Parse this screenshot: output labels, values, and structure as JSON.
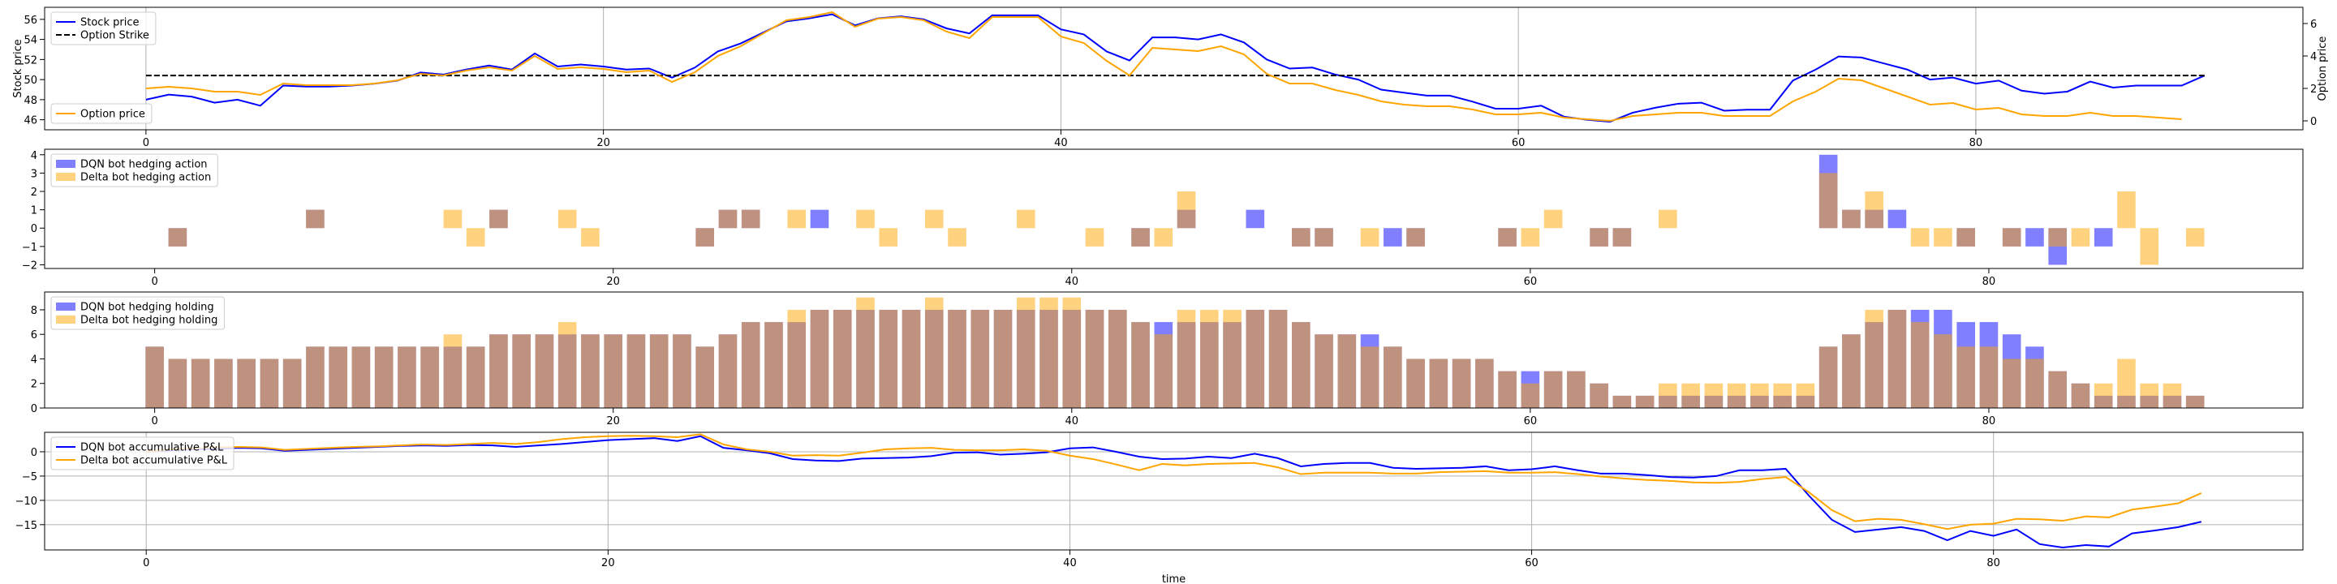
{
  "chart_data": [
    {
      "type": "line",
      "ylabel": "Stock price",
      "y2label": "Option price",
      "xlim": [
        -4.43,
        94.3
      ],
      "xticks": [
        0,
        20,
        40,
        60,
        80
      ],
      "ylim": [
        45,
        57.2
      ],
      "yticks": [
        46,
        48,
        50,
        52,
        54,
        56
      ],
      "y2lim": [
        -0.55,
        7.0
      ],
      "y2ticks": [
        0,
        2,
        4,
        6
      ],
      "grid": "x",
      "x": [
        0,
        1,
        2,
        3,
        4,
        5,
        6,
        7,
        8,
        9,
        10,
        11,
        12,
        13,
        14,
        15,
        16,
        17,
        18,
        19,
        20,
        21,
        22,
        23,
        24,
        25,
        26,
        27,
        28,
        29,
        30,
        31,
        32,
        33,
        34,
        35,
        36,
        37,
        38,
        39,
        40,
        41,
        42,
        43,
        44,
        45,
        46,
        47,
        48,
        49,
        50,
        51,
        52,
        53,
        54,
        55,
        56,
        57,
        58,
        59,
        60,
        61,
        62,
        63,
        64,
        65,
        66,
        67,
        68,
        69,
        70,
        71,
        72,
        73,
        74,
        75,
        76,
        77,
        78,
        79,
        80,
        81,
        82,
        83,
        84,
        85,
        86,
        87,
        88,
        89,
        90
      ],
      "series": [
        {
          "name": "Stock price",
          "color": "#0000ff",
          "legend": "upper left",
          "values": [
            48.0,
            48.5,
            48.3,
            47.7,
            48.0,
            47.4,
            49.4,
            49.3,
            49.3,
            49.4,
            49.6,
            49.9,
            50.7,
            50.5,
            51.0,
            51.4,
            51.0,
            52.6,
            51.3,
            51.5,
            51.3,
            51.0,
            51.1,
            50.2,
            51.2,
            52.8,
            53.6,
            54.7,
            55.8,
            56.1,
            56.5,
            55.4,
            56.1,
            56.3,
            56.0,
            55.1,
            54.6,
            56.4,
            56.4,
            56.4,
            55.0,
            54.5,
            52.8,
            51.9,
            54.2,
            54.2,
            54.0,
            54.5,
            53.7,
            52.0,
            51.1,
            51.2,
            50.5,
            50.0,
            49.0,
            48.7,
            48.4,
            48.4,
            47.8,
            47.1,
            47.1,
            47.4,
            46.3,
            46.0,
            45.8,
            46.7,
            47.2,
            47.6,
            47.7,
            46.9,
            47.0,
            47.0,
            49.9,
            51.0,
            52.3,
            52.2,
            51.6,
            51.0,
            50.0,
            50.2,
            49.6,
            49.9,
            48.9,
            48.6,
            48.8,
            49.8,
            49.2,
            49.4,
            49.4,
            49.4,
            50.4
          ]
        },
        {
          "name": "Option Strike",
          "color": "#000000",
          "dash": true,
          "legend": "upper left",
          "x": [
            0,
            90
          ],
          "values": [
            50.4,
            50.4
          ]
        },
        {
          "name": "Option price",
          "color": "#ffa500",
          "axis": "y2",
          "legend": "lower left",
          "values": [
            2.0,
            2.1,
            2.0,
            1.8,
            1.8,
            1.6,
            2.3,
            2.2,
            2.2,
            2.2,
            2.3,
            2.5,
            2.9,
            2.8,
            3.1,
            3.3,
            3.1,
            4.0,
            3.2,
            3.3,
            3.2,
            3.0,
            3.1,
            2.4,
            3.0,
            4.0,
            4.6,
            5.4,
            6.2,
            6.4,
            6.7,
            5.8,
            6.3,
            6.4,
            6.2,
            5.5,
            5.1,
            6.4,
            6.4,
            6.4,
            5.2,
            4.8,
            3.7,
            2.8,
            4.5,
            4.4,
            4.3,
            4.6,
            4.1,
            2.9,
            2.3,
            2.3,
            1.9,
            1.6,
            1.2,
            1.0,
            0.9,
            0.9,
            0.7,
            0.4,
            0.4,
            0.5,
            0.2,
            0.1,
            0.0,
            0.3,
            0.4,
            0.5,
            0.5,
            0.3,
            0.3,
            0.3,
            1.2,
            1.8,
            2.6,
            2.5,
            2.0,
            1.5,
            1.0,
            1.1,
            0.7,
            0.8,
            0.4,
            0.3,
            0.3,
            0.5,
            0.3,
            0.3,
            0.2,
            0.1,
            null
          ]
        }
      ]
    },
    {
      "type": "bar",
      "xlim": [
        -4.8,
        93.7
      ],
      "xticks": [
        0,
        20,
        40,
        60,
        80
      ],
      "ylim": [
        -2.2,
        4.3
      ],
      "yticks": [
        {
          "value": -2,
          "label": "−2"
        },
        {
          "value": -1,
          "label": "−1"
        },
        0,
        1,
        2,
        3,
        4
      ],
      "grid": "none",
      "x": [
        0,
        1,
        2,
        3,
        4,
        5,
        6,
        7,
        8,
        9,
        10,
        11,
        12,
        13,
        14,
        15,
        16,
        17,
        18,
        19,
        20,
        21,
        22,
        23,
        24,
        25,
        26,
        27,
        28,
        29,
        30,
        31,
        32,
        33,
        34,
        35,
        36,
        37,
        38,
        39,
        40,
        41,
        42,
        43,
        44,
        45,
        46,
        47,
        48,
        49,
        50,
        51,
        52,
        53,
        54,
        55,
        56,
        57,
        58,
        59,
        60,
        61,
        62,
        63,
        64,
        65,
        66,
        67,
        68,
        69,
        70,
        71,
        72,
        73,
        74,
        75,
        76,
        77,
        78,
        79,
        80,
        81,
        82,
        83,
        84,
        85,
        86,
        87,
        88,
        89
      ],
      "series": [
        {
          "name": "DQN bot hedging action",
          "color": "#0000ff",
          "legend": "upper left",
          "values": [
            0,
            -1,
            0,
            0,
            0,
            0,
            0,
            1,
            0,
            0,
            0,
            0,
            0,
            0,
            0,
            1,
            0,
            0,
            0,
            0,
            0,
            0,
            0,
            0,
            -1,
            1,
            1,
            0,
            0,
            1,
            0,
            0,
            0,
            0,
            0,
            0,
            0,
            0,
            0,
            0,
            0,
            0,
            0,
            -1,
            0,
            1,
            0,
            0,
            1,
            0,
            -1,
            -1,
            0,
            0,
            -1,
            -1,
            0,
            0,
            0,
            -1,
            0,
            0,
            0,
            -1,
            -1,
            0,
            0,
            0,
            0,
            0,
            0,
            0,
            0,
            4,
            1,
            1,
            1,
            0,
            0,
            -1,
            0,
            -1,
            -1,
            -2,
            0,
            -1,
            0,
            0,
            0,
            0
          ]
        },
        {
          "name": "Delta bot hedging action",
          "color": "#ffa500",
          "legend": "upper left",
          "values": [
            0,
            -1,
            0,
            0,
            0,
            0,
            0,
            1,
            0,
            0,
            0,
            0,
            0,
            1,
            -1,
            1,
            0,
            0,
            1,
            -1,
            0,
            0,
            0,
            0,
            -1,
            1,
            1,
            0,
            1,
            0,
            0,
            1,
            -1,
            0,
            1,
            -1,
            0,
            0,
            1,
            0,
            0,
            -1,
            0,
            -1,
            -1,
            2,
            0,
            0,
            0,
            0,
            -1,
            -1,
            0,
            -1,
            0,
            -1,
            0,
            0,
            0,
            -1,
            -1,
            1,
            0,
            -1,
            -1,
            0,
            1,
            0,
            0,
            0,
            0,
            0,
            0,
            3,
            1,
            2,
            0,
            -1,
            -1,
            -1,
            0,
            -1,
            0,
            -1,
            -1,
            0,
            2,
            -2,
            0,
            -1
          ]
        }
      ]
    },
    {
      "type": "bar",
      "xlim": [
        -4.8,
        93.7
      ],
      "xticks": [
        0,
        20,
        40,
        60,
        80
      ],
      "ylim": [
        0,
        9.45
      ],
      "yticks": [
        0,
        2,
        4,
        6,
        8
      ],
      "grid": "none",
      "x": [
        0,
        1,
        2,
        3,
        4,
        5,
        6,
        7,
        8,
        9,
        10,
        11,
        12,
        13,
        14,
        15,
        16,
        17,
        18,
        19,
        20,
        21,
        22,
        23,
        24,
        25,
        26,
        27,
        28,
        29,
        30,
        31,
        32,
        33,
        34,
        35,
        36,
        37,
        38,
        39,
        40,
        41,
        42,
        43,
        44,
        45,
        46,
        47,
        48,
        49,
        50,
        51,
        52,
        53,
        54,
        55,
        56,
        57,
        58,
        59,
        60,
        61,
        62,
        63,
        64,
        65,
        66,
        67,
        68,
        69,
        70,
        71,
        72,
        73,
        74,
        75,
        76,
        77,
        78,
        79,
        80,
        81,
        82,
        83,
        84,
        85,
        86,
        87,
        88,
        89
      ],
      "series": [
        {
          "name": "DQN bot hedging holding",
          "color": "#0000ff",
          "legend": "upper left",
          "values": [
            5,
            4,
            4,
            4,
            4,
            4,
            4,
            5,
            5,
            5,
            5,
            5,
            5,
            5,
            5,
            6,
            6,
            6,
            6,
            6,
            6,
            6,
            6,
            6,
            5,
            6,
            7,
            7,
            7,
            8,
            8,
            8,
            8,
            8,
            8,
            8,
            8,
            8,
            8,
            8,
            8,
            8,
            8,
            7,
            7,
            7,
            7,
            7,
            8,
            8,
            7,
            6,
            6,
            6,
            5,
            4,
            4,
            4,
            4,
            3,
            3,
            3,
            3,
            2,
            1,
            1,
            1,
            1,
            1,
            1,
            1,
            1,
            1,
            5,
            6,
            7,
            8,
            8,
            8,
            7,
            7,
            6,
            5,
            3,
            2,
            1,
            1,
            1,
            1,
            1
          ]
        },
        {
          "name": "Delta bot hedging holding",
          "color": "#ffa500",
          "legend": "upper left",
          "values": [
            5,
            4,
            4,
            4,
            4,
            4,
            4,
            5,
            5,
            5,
            5,
            5,
            5,
            6,
            5,
            6,
            6,
            6,
            7,
            6,
            6,
            6,
            6,
            6,
            5,
            6,
            7,
            7,
            8,
            8,
            8,
            9,
            8,
            8,
            9,
            8,
            8,
            8,
            9,
            9,
            9,
            8,
            8,
            7,
            6,
            8,
            8,
            8,
            8,
            8,
            7,
            6,
            6,
            5,
            5,
            4,
            4,
            4,
            4,
            3,
            2,
            3,
            3,
            2,
            1,
            1,
            2,
            2,
            2,
            2,
            2,
            2,
            2,
            5,
            6,
            8,
            8,
            7,
            6,
            5,
            5,
            4,
            4,
            3,
            2,
            2,
            4,
            2,
            2,
            1
          ]
        }
      ]
    },
    {
      "type": "line",
      "xlabel": "time",
      "xlim": [
        -4.4,
        93.4
      ],
      "xticks": [
        0,
        20,
        40,
        60,
        80
      ],
      "ylim": [
        -20.2,
        4.0
      ],
      "yticks": [
        {
          "value": -15,
          "label": "−15"
        },
        {
          "value": -10,
          "label": "−10"
        },
        {
          "value": -5,
          "label": "−5"
        },
        0
      ],
      "grid": "both",
      "x": [
        0,
        1,
        2,
        3,
        4,
        5,
        6,
        7,
        8,
        9,
        10,
        11,
        12,
        13,
        14,
        15,
        16,
        17,
        18,
        19,
        20,
        21,
        22,
        23,
        24,
        25,
        26,
        27,
        28,
        29,
        30,
        31,
        32,
        33,
        34,
        35,
        36,
        37,
        38,
        39,
        40,
        41,
        42,
        43,
        44,
        45,
        46,
        47,
        48,
        49,
        50,
        51,
        52,
        53,
        54,
        55,
        56,
        57,
        58,
        59,
        60,
        61,
        62,
        63,
        64,
        65,
        66,
        67,
        68,
        69,
        70,
        71,
        72,
        73,
        74,
        75,
        76,
        77,
        78,
        79,
        80,
        81,
        82,
        83,
        84,
        85,
        86,
        87,
        88,
        89
      ],
      "series": [
        {
          "name": "DQN bot accumulative P&L",
          "color": "#0000ff",
          "legend": "upper left",
          "values": [
            0,
            0.3,
            0.5,
            0.6,
            0.8,
            0.7,
            0.2,
            0.4,
            0.6,
            0.8,
            1.0,
            1.2,
            1.3,
            1.2,
            1.4,
            1.3,
            1.0,
            1.3,
            1.6,
            2.0,
            2.4,
            2.6,
            2.8,
            2.2,
            3.2,
            0.8,
            0.3,
            -0.3,
            -1.5,
            -1.8,
            -1.9,
            -1.4,
            -1.3,
            -1.2,
            -0.9,
            -0.2,
            -0.1,
            -0.6,
            -0.4,
            -0.1,
            0.7,
            0.9,
            0.0,
            -1.0,
            -1.5,
            -1.4,
            -1.0,
            -1.3,
            -0.4,
            -1.3,
            -3.0,
            -2.5,
            -2.3,
            -2.3,
            -3.3,
            -3.5,
            -3.4,
            -3.3,
            -3.0,
            -3.8,
            -3.6,
            -3.0,
            -3.8,
            -4.5,
            -4.5,
            -4.8,
            -5.2,
            -5.3,
            -5.0,
            -3.8,
            -3.8,
            -3.5,
            -9.0,
            -14.0,
            -16.5,
            -16.0,
            -15.5,
            -16.3,
            -18.2,
            -16.3,
            -17.3,
            -16.0,
            -19.0,
            -19.7,
            -19.2,
            -19.5,
            -16.8,
            -16.2,
            -15.5,
            -14.4
          ]
        },
        {
          "name": "Delta bot accumulative P&L",
          "color": "#ffa500",
          "legend": "upper left",
          "values": [
            0,
            0.5,
            0.7,
            0.9,
            1.0,
            0.9,
            0.4,
            0.6,
            0.8,
            1.0,
            1.1,
            1.3,
            1.5,
            1.4,
            1.6,
            1.8,
            1.6,
            2.0,
            2.6,
            3.0,
            3.2,
            3.3,
            3.2,
            3.0,
            3.6,
            1.5,
            0.5,
            0.0,
            -0.8,
            -0.7,
            -0.8,
            -0.2,
            0.5,
            0.7,
            0.8,
            0.4,
            0.3,
            0.3,
            0.5,
            0.2,
            -0.8,
            -1.5,
            -2.6,
            -3.8,
            -2.5,
            -2.8,
            -2.5,
            -2.4,
            -2.3,
            -3.2,
            -4.6,
            -4.3,
            -4.3,
            -4.3,
            -4.5,
            -4.5,
            -4.2,
            -4.1,
            -4.0,
            -4.3,
            -4.3,
            -4.2,
            -4.6,
            -5.1,
            -5.5,
            -5.8,
            -6.0,
            -6.3,
            -6.4,
            -6.2,
            -5.6,
            -5.2,
            -8.3,
            -12.0,
            -14.3,
            -13.8,
            -14.0,
            -14.9,
            -15.9,
            -15.0,
            -14.8,
            -13.8,
            -13.9,
            -14.2,
            -13.3,
            -13.5,
            -11.9,
            -11.3,
            -10.6,
            -8.5
          ]
        }
      ]
    }
  ]
}
